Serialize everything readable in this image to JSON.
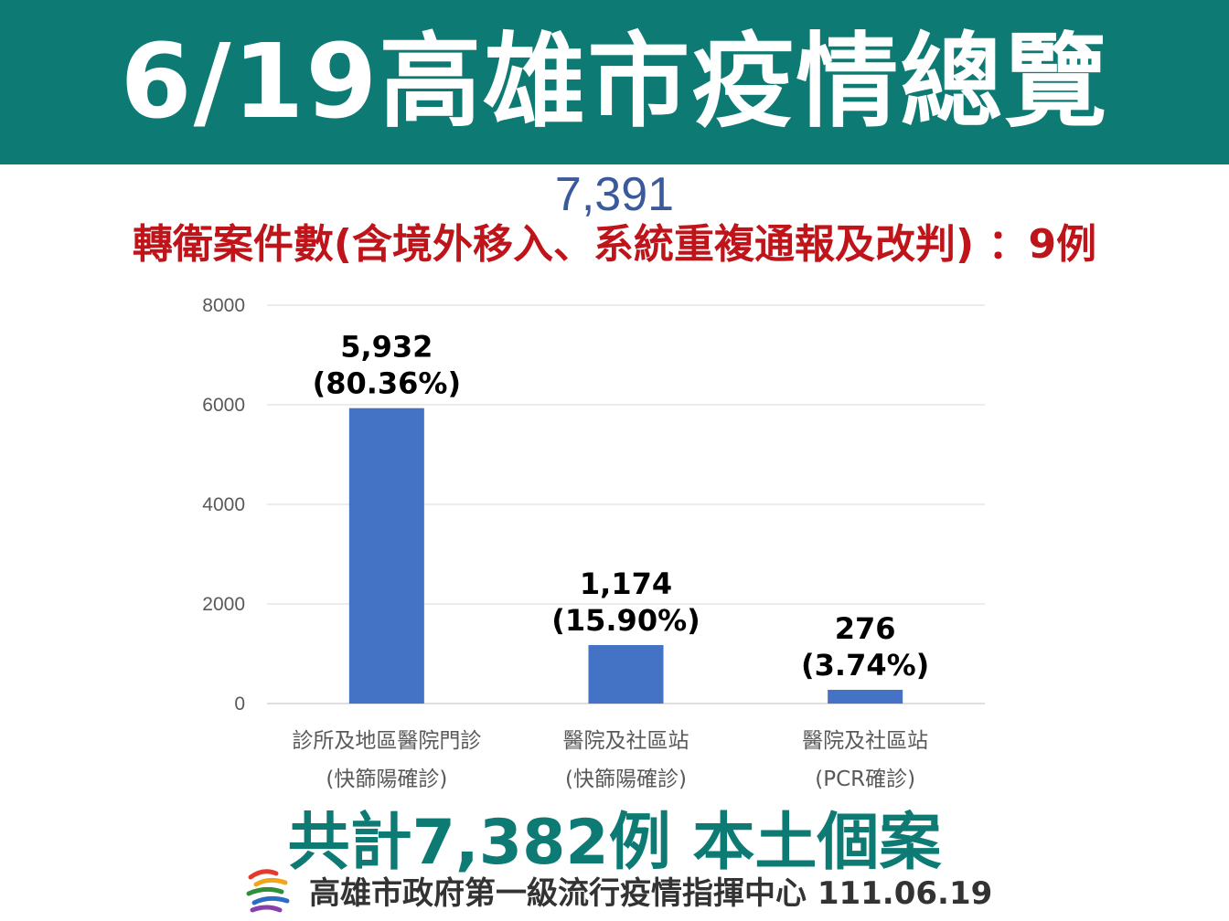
{
  "header": {
    "title": "6/19高雄市疫情總覽"
  },
  "total_figure": "7,391",
  "transfer_note": "轉衛案件數(含境外移入、系統重複通報及改判) ：9例",
  "summary": "共計7,382例 本土個案",
  "footer": {
    "org": "高雄市政府第一級流行疫情指揮中心 111.06.19",
    "logo_icon": "kaohsiung-city-logo-icon"
  },
  "colors": {
    "banner": "#0d7a73",
    "bar": "#4472c4",
    "transfer_text": "#c0141b",
    "summary_text": "#0d7a73",
    "total_text": "#3a5a9c"
  },
  "chart_data": {
    "type": "bar",
    "categories": [
      [
        "診所及地區醫院門診",
        "(快篩陽確診)"
      ],
      [
        "醫院及社區站",
        "(快篩陽確診)"
      ],
      [
        "醫院及社區站",
        "(PCR確診)"
      ]
    ],
    "values": [
      5932,
      1174,
      276
    ],
    "data_labels": [
      [
        "5,932",
        "(80.36%)"
      ],
      [
        "1,174",
        "(15.90%)"
      ],
      [
        "276",
        "(3.74%)"
      ]
    ],
    "yticks": [
      "0",
      "2000",
      "4000",
      "6000",
      "8000"
    ],
    "ylim": [
      0,
      8000
    ],
    "grid": true,
    "legend": "none",
    "xlabel": "",
    "ylabel": ""
  }
}
